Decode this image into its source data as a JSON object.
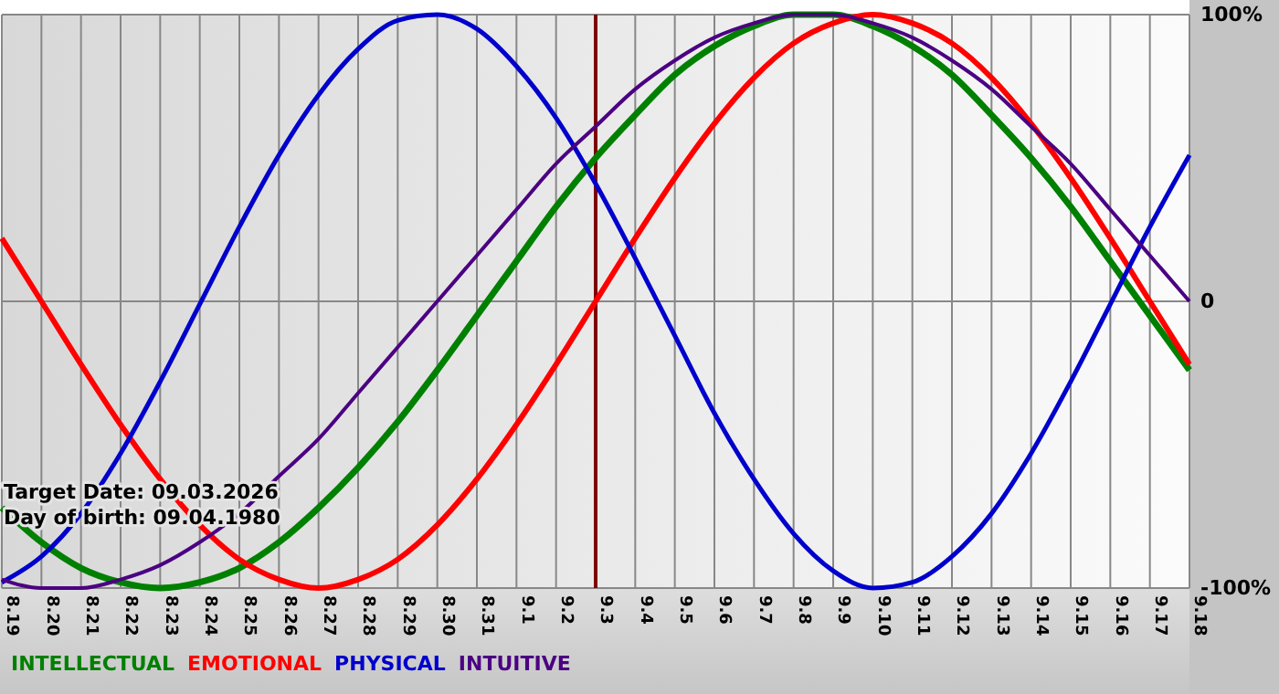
{
  "chart_data": {
    "type": "line",
    "categories": [
      "8.19",
      "8.20",
      "8.21",
      "8.22",
      "8.23",
      "8.24",
      "8.25",
      "8.26",
      "8.27",
      "8.28",
      "8.29",
      "8.30",
      "8.31",
      "9.1",
      "9.2",
      "9.3",
      "9.4",
      "9.5",
      "9.6",
      "9.7",
      "9.8",
      "9.9",
      "9.10",
      "9.11",
      "9.12",
      "9.13",
      "9.14",
      "9.15",
      "9.16",
      "9.17",
      "9.18"
    ],
    "series": [
      {
        "name": "INTELLECTUAL",
        "color": "#008000",
        "values": [
          -72,
          -84,
          -93,
          -98,
          -100,
          -98,
          -93,
          -84,
          -72,
          -58,
          -42,
          -24,
          -5,
          14,
          33,
          50,
          65,
          79,
          89,
          96,
          100,
          100,
          96,
          89,
          79,
          65,
          50,
          33,
          14,
          -5,
          -24
        ]
      },
      {
        "name": "EMOTIONAL",
        "color": "#ff0000",
        "values": [
          22,
          0,
          -22,
          -43,
          -62,
          -78,
          -90,
          -97,
          -100,
          -97,
          -90,
          -78,
          -62,
          -43,
          -22,
          0,
          22,
          43,
          62,
          78,
          90,
          97,
          100,
          97,
          90,
          78,
          62,
          43,
          22,
          0,
          -22
        ]
      },
      {
        "name": "PHYSICAL",
        "color": "#0000cc",
        "values": [
          -98,
          -89,
          -74,
          -53,
          -28,
          -1,
          26,
          51,
          72,
          88,
          98,
          100,
          95,
          82,
          64,
          41,
          15,
          -12,
          -39,
          -62,
          -81,
          -94,
          -100,
          -98,
          -89,
          -74,
          -53,
          -28,
          -1,
          26,
          51
        ]
      },
      {
        "name": "INTUITIVE",
        "color": "#4b0082",
        "values": [
          -97,
          -100,
          -100,
          -97,
          -92,
          -84,
          -74,
          -61,
          -48,
          -32,
          -16,
          0,
          16,
          32,
          48,
          61,
          74,
          84,
          92,
          97,
          100,
          100,
          97,
          92,
          84,
          74,
          61,
          48,
          32,
          16,
          0
        ]
      }
    ],
    "ylim": [
      -100,
      100
    ],
    "yticks": [
      {
        "value": 100,
        "label": "100%"
      },
      0,
      {
        "value": -100,
        "label": "-100%"
      }
    ],
    "grid": true,
    "legend": "bottom left",
    "ref_lines": [
      {
        "axis": "x",
        "value": "9.3",
        "color": "#800000"
      }
    ],
    "annotations": [
      "Target Date: 09.03.2026",
      "Day of birth: 09.04.1980"
    ]
  }
}
